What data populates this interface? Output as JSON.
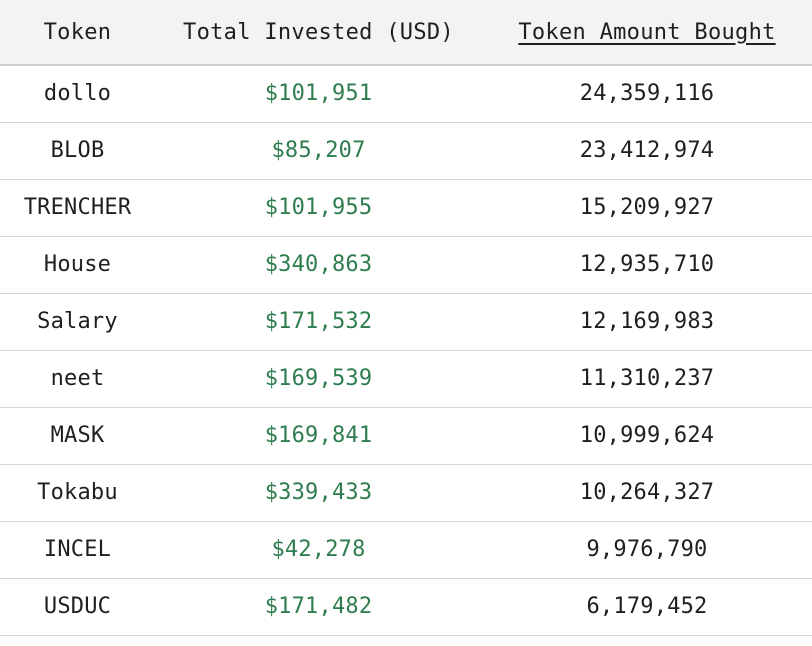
{
  "table": {
    "headers": {
      "token": "Token",
      "total_invested": "Total Invested (USD)",
      "token_amount": "Token Amount Bought"
    },
    "colors": {
      "invested_text": "#2e7d4f",
      "header_bg": "#f3f3f3"
    },
    "rows": [
      {
        "token": "dollo",
        "invested": "$101,951",
        "amount": "24,359,116"
      },
      {
        "token": "BLOB",
        "invested": "$85,207",
        "amount": "23,412,974"
      },
      {
        "token": "TRENCHER",
        "invested": "$101,955",
        "amount": "15,209,927"
      },
      {
        "token": "House",
        "invested": "$340,863",
        "amount": "12,935,710"
      },
      {
        "token": "Salary",
        "invested": "$171,532",
        "amount": "12,169,983"
      },
      {
        "token": "neet",
        "invested": "$169,539",
        "amount": "11,310,237"
      },
      {
        "token": "MASK",
        "invested": "$169,841",
        "amount": "10,999,624"
      },
      {
        "token": "Tokabu",
        "invested": "$339,433",
        "amount": "10,264,327"
      },
      {
        "token": "INCEL",
        "invested": "$42,278",
        "amount": "9,976,790"
      },
      {
        "token": "USDUC",
        "invested": "$171,482",
        "amount": "6,179,452"
      }
    ]
  }
}
